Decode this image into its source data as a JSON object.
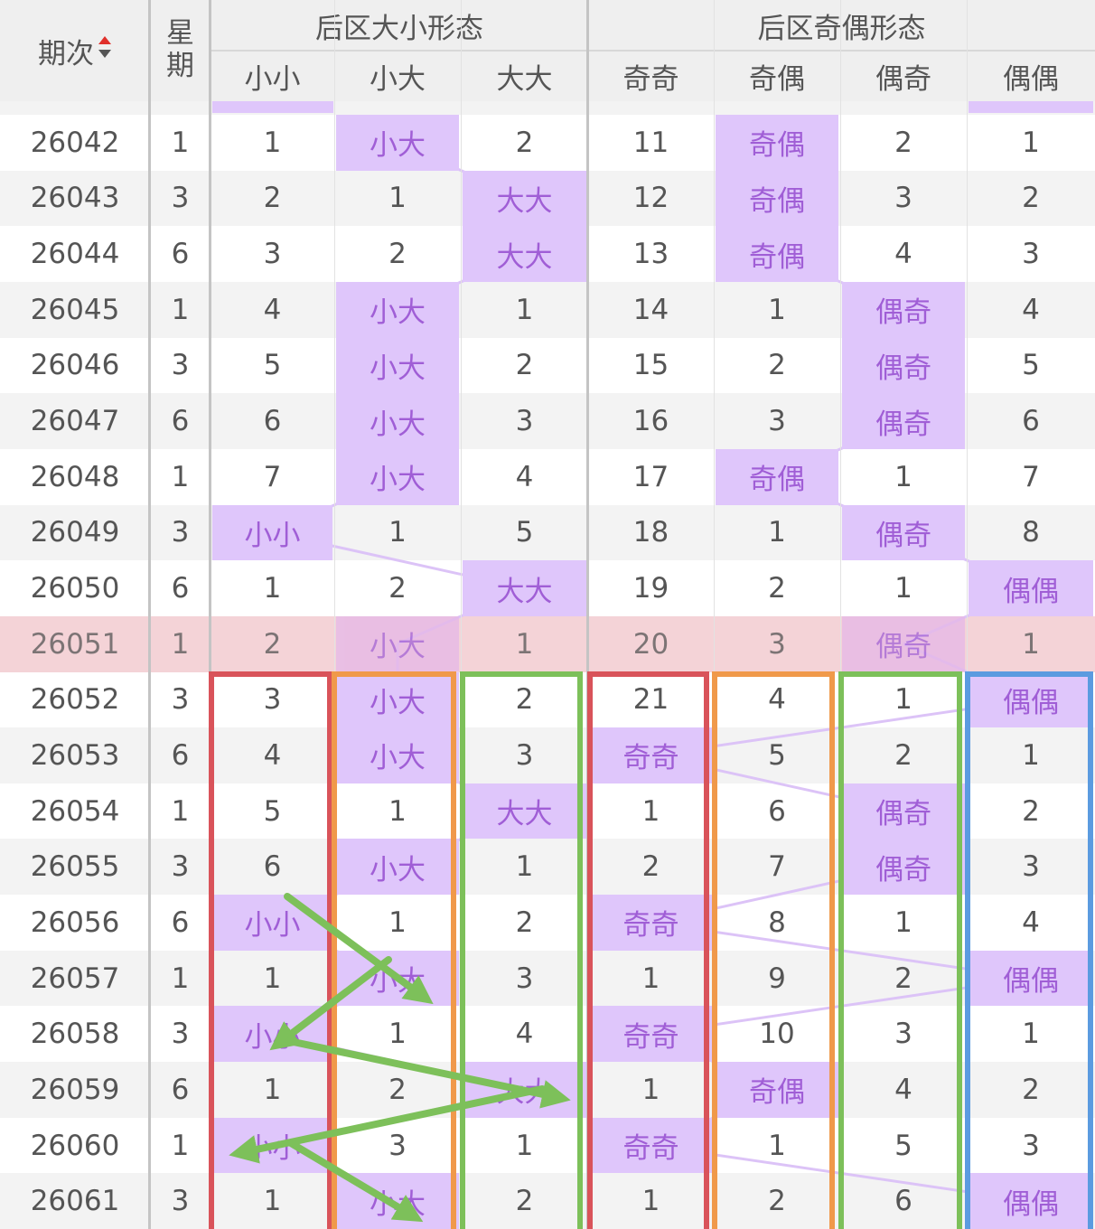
{
  "header": {
    "period": "期次",
    "weekday": "星期",
    "groups": [
      {
        "title": "后区大小形态",
        "columns": [
          "小小",
          "小大",
          "大大"
        ]
      },
      {
        "title": "后区奇偶形态",
        "columns": [
          "奇奇",
          "奇偶",
          "偶奇",
          "偶偶"
        ]
      }
    ]
  },
  "rows": [
    [
      26042,
      1,
      1,
      "小大",
      2,
      11,
      "奇偶",
      2,
      1
    ],
    [
      26043,
      3,
      2,
      1,
      "大大",
      12,
      "奇偶",
      3,
      2
    ],
    [
      26044,
      6,
      3,
      2,
      "大大",
      13,
      "奇偶",
      4,
      3
    ],
    [
      26045,
      1,
      4,
      "小大",
      1,
      14,
      1,
      "偶奇",
      4
    ],
    [
      26046,
      3,
      5,
      "小大",
      2,
      15,
      2,
      "偶奇",
      5
    ],
    [
      26047,
      6,
      6,
      "小大",
      3,
      16,
      3,
      "偶奇",
      6
    ],
    [
      26048,
      1,
      7,
      "小大",
      4,
      17,
      "奇偶",
      1,
      7
    ],
    [
      26049,
      3,
      "小小",
      1,
      5,
      18,
      1,
      "偶奇",
      8
    ],
    [
      26050,
      6,
      1,
      2,
      "大大",
      19,
      2,
      1,
      "偶偶"
    ],
    [
      26051,
      1,
      2,
      "小大",
      1,
      20,
      3,
      "偶奇",
      1
    ],
    [
      26052,
      3,
      3,
      "小大",
      2,
      21,
      4,
      1,
      "偶偶"
    ],
    [
      26053,
      6,
      4,
      "小大",
      3,
      "奇奇",
      5,
      2,
      1
    ],
    [
      26054,
      1,
      5,
      1,
      "大大",
      1,
      6,
      "偶奇",
      2
    ],
    [
      26055,
      3,
      6,
      "小大",
      1,
      2,
      7,
      "偶奇",
      3
    ],
    [
      26056,
      6,
      "小小",
      1,
      2,
      "奇奇",
      8,
      1,
      4
    ],
    [
      26057,
      1,
      1,
      "小大",
      3,
      1,
      9,
      2,
      "偶偶"
    ],
    [
      26058,
      3,
      "小小",
      1,
      4,
      "奇奇",
      10,
      3,
      1
    ],
    [
      26059,
      6,
      1,
      2,
      "大大",
      1,
      "奇偶",
      4,
      2
    ],
    [
      26060,
      1,
      "小小",
      3,
      1,
      "奇奇",
      1,
      5,
      3
    ],
    [
      26061,
      3,
      1,
      "小大",
      2,
      1,
      2,
      6,
      "偶偶"
    ]
  ]
}
